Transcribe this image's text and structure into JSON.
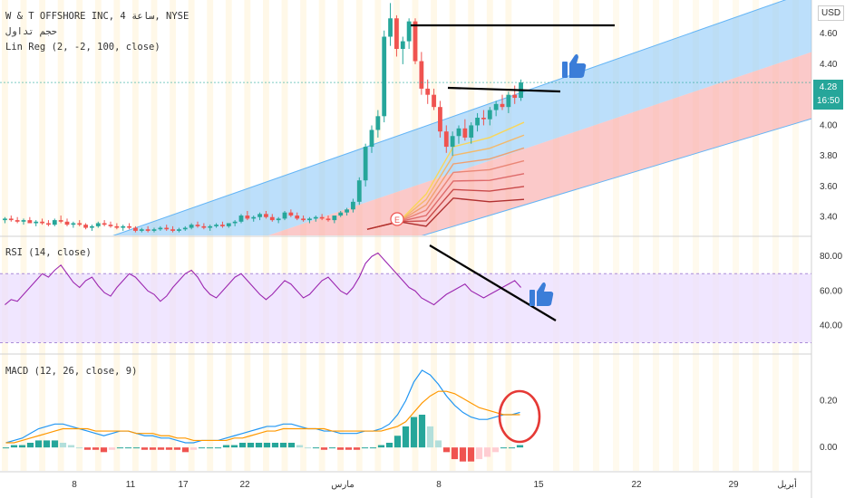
{
  "header": {
    "symbol_line": "W & T OFFSHORE INC, 4 ساعة, NYSE",
    "volume_label": "حجم تداول",
    "linreg_label": "Lin Reg (2, -2, 100, close)",
    "rsi_label": "RSI (14, close)",
    "macd_label": "MACD (12, 26, close, 9)"
  },
  "currency": "USD",
  "price_badge": {
    "price": "4.28",
    "countdown": "16:50"
  },
  "colors": {
    "up": "#26a69a",
    "down": "#ef5350",
    "channel_upper": "#90caf9",
    "channel_lower": "#f8a5a5",
    "rsi_line": "#9c27b0",
    "rsi_band": "#e9dcff",
    "macd_line": "#2196f3",
    "signal_line": "#ff9800",
    "annotation": "#000000",
    "circle": "#e53935",
    "thumb": "#3b7dd8"
  },
  "icons": [
    "thumbs-up-icon",
    "thumbs-up-icon",
    "earnings-e-icon"
  ],
  "chart_data": [
    {
      "type": "candlestick",
      "title": "W & T OFFSHORE INC, 4 ساعة, NYSE",
      "indicator": "Lin Reg (2, -2, 100, close)",
      "ylim": [
        3.28,
        4.82
      ],
      "y_ticks": [
        "4.60",
        "4.40",
        "4.20",
        "4.00",
        "3.80",
        "3.60",
        "3.40"
      ],
      "current_price": 4.28,
      "ohlc": [
        [
          3.38,
          3.4,
          3.36,
          3.39
        ],
        [
          3.39,
          3.41,
          3.37,
          3.38
        ],
        [
          3.38,
          3.4,
          3.36,
          3.37
        ],
        [
          3.37,
          3.39,
          3.35,
          3.38
        ],
        [
          3.38,
          3.4,
          3.36,
          3.36
        ],
        [
          3.36,
          3.38,
          3.34,
          3.37
        ],
        [
          3.37,
          3.39,
          3.35,
          3.36
        ],
        [
          3.36,
          3.38,
          3.34,
          3.35
        ],
        [
          3.35,
          3.39,
          3.34,
          3.38
        ],
        [
          3.38,
          3.41,
          3.36,
          3.37
        ],
        [
          3.37,
          3.39,
          3.34,
          3.35
        ],
        [
          3.35,
          3.37,
          3.33,
          3.36
        ],
        [
          3.36,
          3.38,
          3.34,
          3.35
        ],
        [
          3.35,
          3.36,
          3.32,
          3.33
        ],
        [
          3.33,
          3.35,
          3.31,
          3.34
        ],
        [
          3.34,
          3.37,
          3.33,
          3.36
        ],
        [
          3.36,
          3.38,
          3.34,
          3.35
        ],
        [
          3.35,
          3.37,
          3.33,
          3.34
        ],
        [
          3.34,
          3.36,
          3.32,
          3.33
        ],
        [
          3.33,
          3.35,
          3.31,
          3.34
        ],
        [
          3.34,
          3.36,
          3.32,
          3.33
        ],
        [
          3.33,
          3.34,
          3.3,
          3.31
        ],
        [
          3.31,
          3.33,
          3.3,
          3.32
        ],
        [
          3.32,
          3.34,
          3.3,
          3.31
        ],
        [
          3.31,
          3.33,
          3.3,
          3.32
        ],
        [
          3.32,
          3.34,
          3.31,
          3.33
        ],
        [
          3.33,
          3.35,
          3.31,
          3.32
        ],
        [
          3.32,
          3.34,
          3.3,
          3.31
        ],
        [
          3.31,
          3.33,
          3.3,
          3.32
        ],
        [
          3.32,
          3.34,
          3.31,
          3.33
        ],
        [
          3.33,
          3.36,
          3.32,
          3.35
        ],
        [
          3.35,
          3.37,
          3.33,
          3.34
        ],
        [
          3.34,
          3.36,
          3.32,
          3.33
        ],
        [
          3.33,
          3.35,
          3.31,
          3.34
        ],
        [
          3.34,
          3.36,
          3.33,
          3.35
        ],
        [
          3.35,
          3.37,
          3.33,
          3.34
        ],
        [
          3.34,
          3.36,
          3.33,
          3.36
        ],
        [
          3.36,
          3.38,
          3.34,
          3.37
        ],
        [
          3.37,
          3.42,
          3.36,
          3.41
        ],
        [
          3.41,
          3.44,
          3.38,
          3.39
        ],
        [
          3.39,
          3.41,
          3.37,
          3.4
        ],
        [
          3.4,
          3.43,
          3.38,
          3.42
        ],
        [
          3.42,
          3.44,
          3.39,
          3.4
        ],
        [
          3.4,
          3.42,
          3.37,
          3.38
        ],
        [
          3.38,
          3.4,
          3.36,
          3.39
        ],
        [
          3.39,
          3.44,
          3.38,
          3.43
        ],
        [
          3.43,
          3.45,
          3.4,
          3.41
        ],
        [
          3.41,
          3.43,
          3.38,
          3.39
        ],
        [
          3.39,
          3.41,
          3.37,
          3.38
        ],
        [
          3.38,
          3.4,
          3.36,
          3.39
        ],
        [
          3.39,
          3.41,
          3.37,
          3.4
        ],
        [
          3.4,
          3.42,
          3.38,
          3.39
        ],
        [
          3.39,
          3.41,
          3.37,
          3.38
        ],
        [
          3.38,
          3.4,
          3.36,
          3.41
        ],
        [
          3.41,
          3.44,
          3.4,
          3.43
        ],
        [
          3.43,
          3.46,
          3.41,
          3.45
        ],
        [
          3.45,
          3.52,
          3.43,
          3.5
        ],
        [
          3.5,
          3.66,
          3.48,
          3.64
        ],
        [
          3.64,
          3.88,
          3.6,
          3.86
        ],
        [
          3.86,
          4.0,
          3.82,
          3.97
        ],
        [
          3.97,
          4.1,
          3.92,
          4.06
        ],
        [
          4.06,
          4.62,
          4.02,
          4.58
        ],
        [
          4.58,
          4.8,
          4.52,
          4.7
        ],
        [
          4.7,
          4.72,
          4.45,
          4.5
        ],
        [
          4.5,
          4.58,
          4.4,
          4.55
        ],
        [
          4.55,
          4.7,
          4.5,
          4.68
        ],
        [
          4.68,
          4.7,
          4.4,
          4.42
        ],
        [
          4.42,
          4.48,
          4.2,
          4.24
        ],
        [
          4.24,
          4.3,
          4.14,
          4.2
        ],
        [
          4.2,
          4.24,
          4.1,
          4.12
        ],
        [
          4.12,
          4.16,
          3.92,
          3.96
        ],
        [
          3.96,
          4.0,
          3.82,
          3.86
        ],
        [
          3.86,
          3.96,
          3.8,
          3.93
        ],
        [
          3.93,
          4.0,
          3.88,
          3.98
        ],
        [
          3.98,
          4.04,
          3.9,
          3.92
        ],
        [
          3.92,
          4.02,
          3.88,
          4.0
        ],
        [
          4.0,
          4.08,
          3.96,
          4.05
        ],
        [
          4.05,
          4.1,
          4.0,
          4.04
        ],
        [
          4.04,
          4.12,
          4.0,
          4.1
        ],
        [
          4.1,
          4.16,
          4.06,
          4.14
        ],
        [
          4.14,
          4.2,
          4.1,
          4.12
        ],
        [
          4.12,
          4.22,
          4.08,
          4.2
        ],
        [
          4.2,
          4.26,
          4.14,
          4.18
        ],
        [
          4.18,
          4.3,
          4.16,
          4.28
        ]
      ]
    },
    {
      "type": "line",
      "title": "RSI (14, close)",
      "ylim": [
        25,
        88
      ],
      "y_ticks": [
        "80.00",
        "60.00",
        "40.00"
      ],
      "band": [
        30,
        70
      ],
      "values": [
        52,
        55,
        54,
        58,
        62,
        66,
        70,
        68,
        72,
        75,
        70,
        65,
        62,
        66,
        68,
        63,
        59,
        57,
        62,
        66,
        70,
        68,
        64,
        60,
        58,
        54,
        57,
        62,
        66,
        70,
        72,
        68,
        62,
        58,
        56,
        60,
        64,
        68,
        70,
        66,
        62,
        58,
        55,
        58,
        62,
        66,
        64,
        60,
        56,
        58,
        62,
        66,
        68,
        64,
        60,
        58,
        62,
        68,
        76,
        80,
        82,
        78,
        74,
        70,
        66,
        62,
        60,
        56,
        54,
        52,
        55,
        58,
        60,
        62,
        64,
        60,
        58,
        56,
        58,
        60,
        62,
        64,
        66,
        62
      ]
    },
    {
      "type": "line",
      "title": "MACD (12, 26, close, 9)",
      "ylim": [
        -0.1,
        0.38
      ],
      "y_ticks": [
        "0.20",
        "0.00"
      ],
      "series": [
        {
          "name": "MACD",
          "values": [
            0.02,
            0.03,
            0.04,
            0.06,
            0.08,
            0.09,
            0.1,
            0.1,
            0.09,
            0.08,
            0.07,
            0.06,
            0.05,
            0.06,
            0.07,
            0.07,
            0.06,
            0.05,
            0.05,
            0.04,
            0.04,
            0.03,
            0.02,
            0.02,
            0.03,
            0.03,
            0.03,
            0.04,
            0.05,
            0.06,
            0.07,
            0.08,
            0.09,
            0.09,
            0.1,
            0.1,
            0.09,
            0.08,
            0.08,
            0.07,
            0.07,
            0.06,
            0.06,
            0.06,
            0.07,
            0.07,
            0.08,
            0.1,
            0.14,
            0.2,
            0.28,
            0.33,
            0.31,
            0.27,
            0.22,
            0.18,
            0.15,
            0.13,
            0.12,
            0.12,
            0.13,
            0.14,
            0.14,
            0.15
          ]
        },
        {
          "name": "Signal",
          "values": [
            0.02,
            0.02,
            0.03,
            0.04,
            0.05,
            0.06,
            0.07,
            0.08,
            0.08,
            0.08,
            0.08,
            0.07,
            0.07,
            0.07,
            0.07,
            0.07,
            0.06,
            0.06,
            0.06,
            0.05,
            0.05,
            0.04,
            0.04,
            0.03,
            0.03,
            0.03,
            0.03,
            0.03,
            0.04,
            0.04,
            0.05,
            0.06,
            0.07,
            0.07,
            0.08,
            0.08,
            0.08,
            0.08,
            0.08,
            0.08,
            0.07,
            0.07,
            0.07,
            0.07,
            0.07,
            0.07,
            0.07,
            0.08,
            0.09,
            0.11,
            0.15,
            0.19,
            0.22,
            0.24,
            0.24,
            0.23,
            0.21,
            0.19,
            0.17,
            0.16,
            0.15,
            0.14,
            0.14,
            0.14
          ]
        }
      ],
      "histogram": [
        0.0,
        0.01,
        0.01,
        0.02,
        0.03,
        0.03,
        0.03,
        0.02,
        0.01,
        0.0,
        -0.01,
        -0.01,
        -0.02,
        -0.01,
        0.0,
        0.0,
        0.0,
        -0.01,
        -0.01,
        -0.01,
        -0.01,
        -0.01,
        -0.02,
        -0.01,
        0.0,
        0.0,
        0.0,
        0.01,
        0.01,
        0.02,
        0.02,
        0.02,
        0.02,
        0.02,
        0.02,
        0.02,
        0.01,
        0.0,
        0.0,
        -0.01,
        0.0,
        -0.01,
        -0.01,
        -0.01,
        0.0,
        0.0,
        0.01,
        0.02,
        0.05,
        0.09,
        0.13,
        0.14,
        0.09,
        0.03,
        -0.02,
        -0.05,
        -0.06,
        -0.06,
        -0.05,
        -0.04,
        -0.02,
        0.0,
        0.0,
        0.01
      ]
    }
  ],
  "x_axis": {
    "ticks": [
      {
        "label": "8"
      },
      {
        "label": "11"
      },
      {
        "label": "17"
      },
      {
        "label": "22"
      },
      {
        "label": "مارس"
      },
      {
        "label": "8"
      },
      {
        "label": "15"
      },
      {
        "label": "22"
      },
      {
        "label": "29"
      },
      {
        "label": "أبريل"
      }
    ]
  }
}
